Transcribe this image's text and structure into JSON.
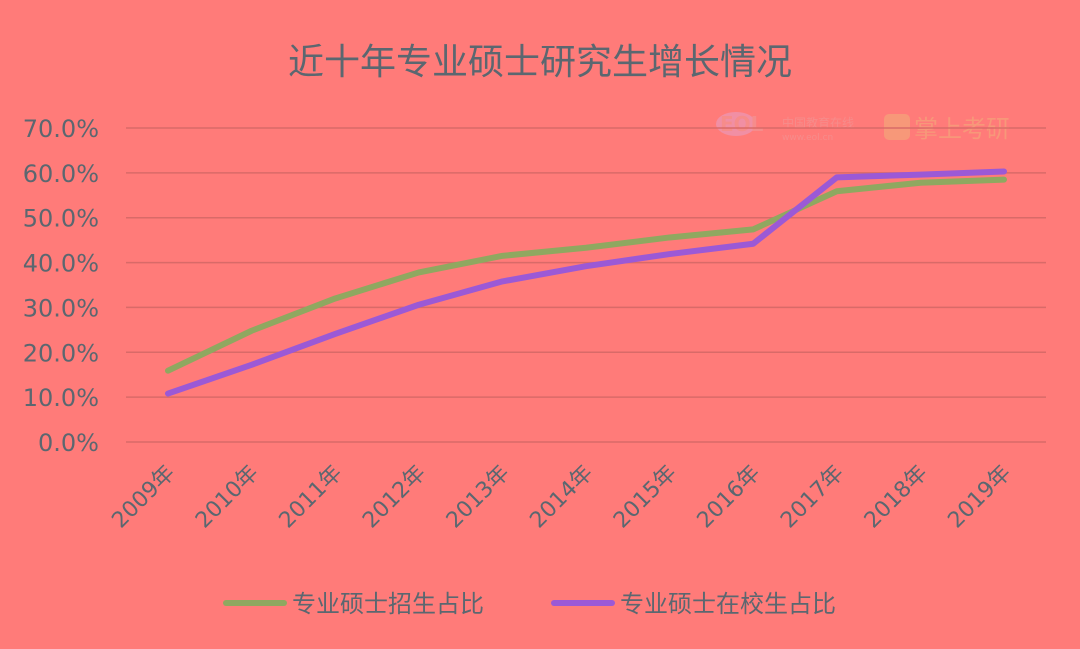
{
  "chart_data": {
    "type": "line",
    "title": "近十年专业硕士研究生增长情况",
    "categories": [
      "2009年",
      "2010年",
      "2011年",
      "2012年",
      "2013年",
      "2014年",
      "2015年",
      "2016年",
      "2017年",
      "2018年",
      "2019年"
    ],
    "ylim": [
      0,
      70
    ],
    "yticks": [
      "0.0%",
      "10.0%",
      "20.0%",
      "30.0%",
      "40.0%",
      "50.0%",
      "60.0%",
      "70.0%"
    ],
    "grid": true,
    "legend_position": "bottom",
    "series": [
      {
        "name": "专业硕士招生占比",
        "color": "#8fa860",
        "values": [
          15.9,
          24.8,
          32.0,
          37.8,
          41.5,
          43.3,
          45.6,
          47.4,
          55.9,
          57.8,
          58.5
        ]
      },
      {
        "name": "专业硕士在校生占比",
        "color": "#9b59d6",
        "values": [
          10.8,
          17.2,
          24.1,
          30.6,
          35.8,
          39.2,
          41.9,
          44.2,
          59.0,
          59.6,
          60.3
        ]
      }
    ]
  },
  "watermark": {
    "logo_left": "EOL",
    "logo_left_cn": "中国教育在线",
    "logo_left_url": "www.eol.cn",
    "logo_right": "掌上考研"
  }
}
